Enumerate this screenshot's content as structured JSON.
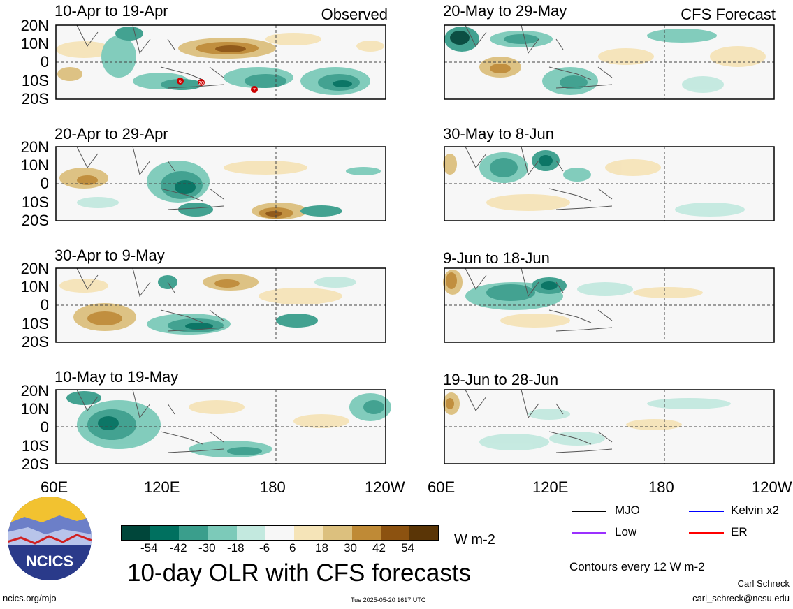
{
  "header": {
    "observed_label": "Observed",
    "forecast_label": "CFS Forecast"
  },
  "latitude_labels": [
    "20N",
    "10N",
    "0",
    "10S",
    "20S"
  ],
  "longitude_labels": [
    "60E",
    "120E",
    "180",
    "120W"
  ],
  "observed_panels": [
    {
      "title": "10-Apr to 19-Apr"
    },
    {
      "title": "20-Apr to 29-Apr"
    },
    {
      "title": "30-Apr to 9-May"
    },
    {
      "title": "10-May to 19-May"
    }
  ],
  "forecast_panels": [
    {
      "title": "20-May to 29-May"
    },
    {
      "title": "30-May to 8-Jun"
    },
    {
      "title": "9-Jun to 18-Jun"
    },
    {
      "title": "19-Jun to 28-Jun"
    }
  ],
  "storm_markers": [
    "6",
    "20",
    "7"
  ],
  "colorbar": {
    "ticks": [
      "-54",
      "-42",
      "-30",
      "-18",
      "-6",
      "6",
      "18",
      "30",
      "42",
      "54"
    ],
    "colors": [
      "#00463a",
      "#00705f",
      "#3a9e8c",
      "#7ccab9",
      "#c3e9df",
      "#f7f7f7",
      "#f5e4b8",
      "#dcc07e",
      "#bf8a36",
      "#8c5210",
      "#5a3506"
    ],
    "units": "W m-2"
  },
  "legend": {
    "items": [
      {
        "label": "MJO",
        "color": "#000000"
      },
      {
        "label": "Kelvin x2",
        "color": "#0000ff"
      },
      {
        "label": "Low",
        "color": "#9b30ff"
      },
      {
        "label": "ER",
        "color": "#ff0000"
      }
    ],
    "contours_note": "Contours every 12 W m-2"
  },
  "main_title": "10-day OLR with CFS forecasts",
  "logo_text": "NCICS",
  "footer": {
    "website": "ncics.org/mjo",
    "timestamp": "Tue 2025-05-20 1617 UTC",
    "author": "Carl Schreck",
    "email": "carl_schreck@ncsu.edu"
  }
}
